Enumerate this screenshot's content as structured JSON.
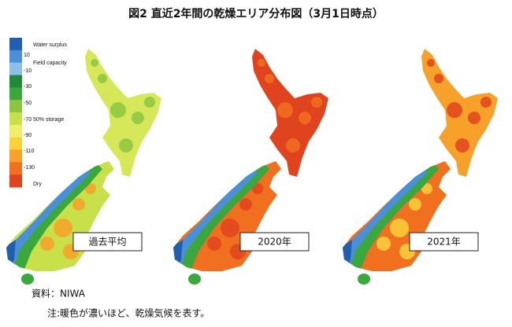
{
  "header": {
    "title": "図2  直近2年間の乾燥エリア分布図（3月1日時点）"
  },
  "legend": {
    "labels": [
      "Water surplus",
      "Field capacity",
      "50% storage",
      "Dry"
    ],
    "ticks": [
      10,
      -10,
      -30,
      -50,
      -70,
      -90,
      -110,
      -130
    ]
  },
  "maps": [
    {
      "label": "過去平均"
    },
    {
      "label": "2020年"
    },
    {
      "label": "2021年"
    }
  ],
  "footer": {
    "source": "資料：NIWA",
    "note": "注:暖色が濃いほど、乾燥気候を表す。"
  }
}
